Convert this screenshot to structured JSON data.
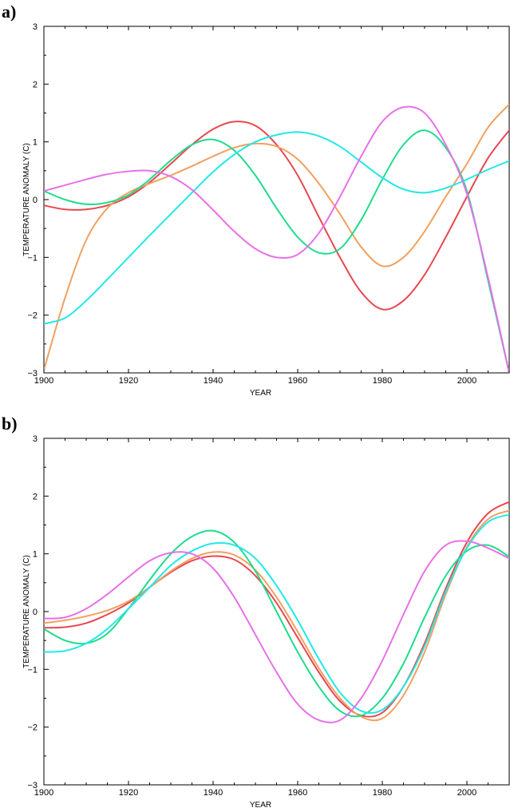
{
  "chart_data": [
    {
      "type": "line",
      "panel_label": "a)",
      "xlabel": "YEAR",
      "ylabel": "TEMPERATURE ANOMALY (C)",
      "xlim": [
        1900,
        2010
      ],
      "ylim": [
        -3,
        3
      ],
      "xticks": [
        1900,
        1920,
        1940,
        1960,
        1980,
        2000
      ],
      "yticks": [
        -3,
        -2,
        -1,
        0,
        1,
        2,
        3
      ],
      "grid": false,
      "series": [
        {
          "color": "#e8474f",
          "x": [
            1900,
            1905,
            1910,
            1915,
            1920,
            1925,
            1930,
            1935,
            1940,
            1945,
            1950,
            1955,
            1960,
            1965,
            1970,
            1975,
            1980,
            1985,
            1990,
            1995,
            2000,
            2005,
            2010
          ],
          "y": [
            -0.1,
            -0.17,
            -0.17,
            -0.1,
            0.05,
            0.3,
            0.62,
            0.95,
            1.22,
            1.35,
            1.28,
            0.95,
            0.42,
            -0.3,
            -1.0,
            -1.6,
            -1.9,
            -1.75,
            -1.3,
            -0.65,
            0.05,
            0.72,
            1.2
          ]
        },
        {
          "color": "#f0a060",
          "x": [
            1900,
            1905,
            1910,
            1915,
            1920,
            1925,
            1930,
            1935,
            1940,
            1945,
            1950,
            1955,
            1960,
            1965,
            1970,
            1975,
            1980,
            1985,
            1990,
            1995,
            2000,
            2005,
            2010
          ],
          "y": [
            -2.95,
            -1.7,
            -0.7,
            -0.15,
            0.12,
            0.28,
            0.42,
            0.58,
            0.75,
            0.9,
            0.97,
            0.92,
            0.7,
            0.28,
            -0.25,
            -0.82,
            -1.15,
            -1.0,
            -0.55,
            0.05,
            0.62,
            1.25,
            1.65
          ]
        },
        {
          "color": "#1fdc8c",
          "x": [
            1900,
            1905,
            1910,
            1915,
            1920,
            1925,
            1930,
            1935,
            1940,
            1945,
            1950,
            1955,
            1960,
            1965,
            1970,
            1975,
            1980,
            1985,
            1990,
            1995,
            2000,
            2005,
            2010
          ],
          "y": [
            0.15,
            0.0,
            -0.08,
            -0.05,
            0.08,
            0.35,
            0.68,
            0.95,
            1.04,
            0.85,
            0.42,
            -0.15,
            -0.65,
            -0.92,
            -0.85,
            -0.35,
            0.35,
            0.95,
            1.2,
            0.9,
            0.15,
            -1.4,
            -3.0
          ]
        },
        {
          "color": "#22e8e8",
          "x": [
            1900,
            1905,
            1910,
            1915,
            1920,
            1925,
            1930,
            1935,
            1940,
            1945,
            1950,
            1955,
            1960,
            1965,
            1970,
            1975,
            1980,
            1985,
            1990,
            1995,
            2000,
            2005,
            2010
          ],
          "y": [
            -2.15,
            -2.05,
            -1.75,
            -1.38,
            -1.0,
            -0.62,
            -0.25,
            0.12,
            0.48,
            0.78,
            1.0,
            1.12,
            1.17,
            1.1,
            0.92,
            0.65,
            0.38,
            0.18,
            0.12,
            0.2,
            0.35,
            0.52,
            0.67
          ]
        },
        {
          "color": "#e870e8",
          "x": [
            1900,
            1905,
            1910,
            1915,
            1920,
            1925,
            1930,
            1935,
            1940,
            1945,
            1950,
            1955,
            1960,
            1965,
            1970,
            1975,
            1980,
            1985,
            1990,
            1995,
            2000,
            2005,
            2010
          ],
          "y": [
            0.15,
            0.25,
            0.35,
            0.44,
            0.49,
            0.5,
            0.4,
            0.17,
            -0.18,
            -0.55,
            -0.85,
            -1.0,
            -0.95,
            -0.58,
            0.05,
            0.75,
            1.35,
            1.6,
            1.5,
            0.95,
            0.1,
            -1.35,
            -3.0
          ]
        }
      ]
    },
    {
      "type": "line",
      "panel_label": "b)",
      "xlabel": "YEAR",
      "ylabel": "TEMPERATURE ANOMALY (C)",
      "xlim": [
        1900,
        2010
      ],
      "ylim": [
        -3,
        3
      ],
      "xticks": [
        1900,
        1920,
        1940,
        1960,
        1980,
        2000
      ],
      "yticks": [
        -3,
        -2,
        -1,
        0,
        1,
        2,
        3
      ],
      "grid": false,
      "series": [
        {
          "color": "#e8474f",
          "x": [
            1900,
            1905,
            1910,
            1915,
            1920,
            1925,
            1930,
            1935,
            1940,
            1945,
            1950,
            1955,
            1960,
            1965,
            1970,
            1975,
            1980,
            1985,
            1990,
            1995,
            2000,
            2005,
            2010
          ],
          "y": [
            -0.28,
            -0.27,
            -0.2,
            -0.05,
            0.15,
            0.42,
            0.68,
            0.88,
            0.96,
            0.9,
            0.62,
            0.15,
            -0.45,
            -1.05,
            -1.55,
            -1.8,
            -1.75,
            -1.3,
            -0.55,
            0.4,
            1.2,
            1.7,
            1.9
          ]
        },
        {
          "color": "#f0a060",
          "x": [
            1900,
            1905,
            1910,
            1915,
            1920,
            1925,
            1930,
            1935,
            1940,
            1945,
            1950,
            1955,
            1960,
            1965,
            1970,
            1975,
            1980,
            1985,
            1990,
            1995,
            2000,
            2005,
            2010
          ],
          "y": [
            -0.2,
            -0.15,
            -0.08,
            0.02,
            0.18,
            0.42,
            0.7,
            0.92,
            1.03,
            0.98,
            0.72,
            0.25,
            -0.35,
            -0.98,
            -1.5,
            -1.82,
            -1.85,
            -1.45,
            -0.7,
            0.3,
            1.12,
            1.6,
            1.75
          ]
        },
        {
          "color": "#1fdc8c",
          "x": [
            1900,
            1905,
            1910,
            1915,
            1920,
            1925,
            1930,
            1935,
            1940,
            1945,
            1950,
            1955,
            1960,
            1965,
            1970,
            1975,
            1980,
            1985,
            1990,
            1995,
            2000,
            2005,
            2010
          ],
          "y": [
            -0.3,
            -0.5,
            -0.55,
            -0.38,
            0.05,
            0.55,
            1.0,
            1.3,
            1.4,
            1.2,
            0.7,
            0.0,
            -0.7,
            -1.3,
            -1.72,
            -1.8,
            -1.5,
            -0.9,
            -0.1,
            0.62,
            1.05,
            1.15,
            0.95
          ]
        },
        {
          "color": "#22e8e8",
          "x": [
            1900,
            1905,
            1910,
            1915,
            1920,
            1925,
            1930,
            1935,
            1940,
            1945,
            1950,
            1955,
            1960,
            1965,
            1970,
            1975,
            1980,
            1985,
            1990,
            1995,
            2000,
            2005,
            2010
          ],
          "y": [
            -0.7,
            -0.68,
            -0.55,
            -0.3,
            0.05,
            0.42,
            0.8,
            1.05,
            1.18,
            1.15,
            0.92,
            0.45,
            -0.15,
            -0.82,
            -1.4,
            -1.72,
            -1.7,
            -1.3,
            -0.6,
            0.35,
            1.1,
            1.55,
            1.68
          ]
        },
        {
          "color": "#e870e8",
          "x": [
            1900,
            1905,
            1910,
            1915,
            1920,
            1925,
            1930,
            1935,
            1940,
            1945,
            1950,
            1955,
            1960,
            1965,
            1970,
            1975,
            1980,
            1985,
            1990,
            1995,
            2000,
            2005,
            2010
          ],
          "y": [
            -0.12,
            -0.1,
            0.05,
            0.3,
            0.6,
            0.88,
            1.02,
            1.0,
            0.75,
            0.25,
            -0.4,
            -1.05,
            -1.6,
            -1.88,
            -1.88,
            -1.5,
            -0.85,
            -0.05,
            0.7,
            1.15,
            1.22,
            1.1,
            0.92
          ]
        }
      ]
    }
  ]
}
